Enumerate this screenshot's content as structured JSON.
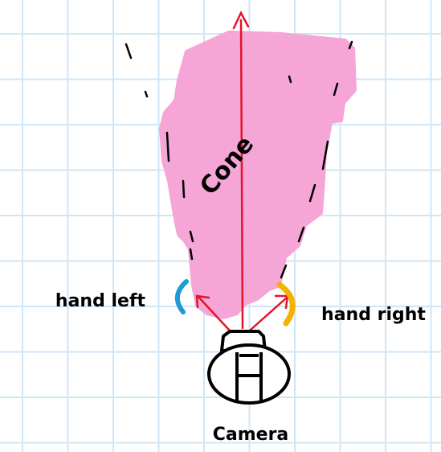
{
  "diagram": {
    "labels": {
      "cone": "Cone",
      "hand_left": "hand left",
      "hand_right": "hand right",
      "camera": "Camera"
    },
    "colors": {
      "grid": "#cfe6f7",
      "cone_fill": "#f6a6d6",
      "arrow": "#e3142c",
      "hand_left": "#1e9bd7",
      "hand_right": "#f2b200",
      "ink": "#000000"
    }
  }
}
